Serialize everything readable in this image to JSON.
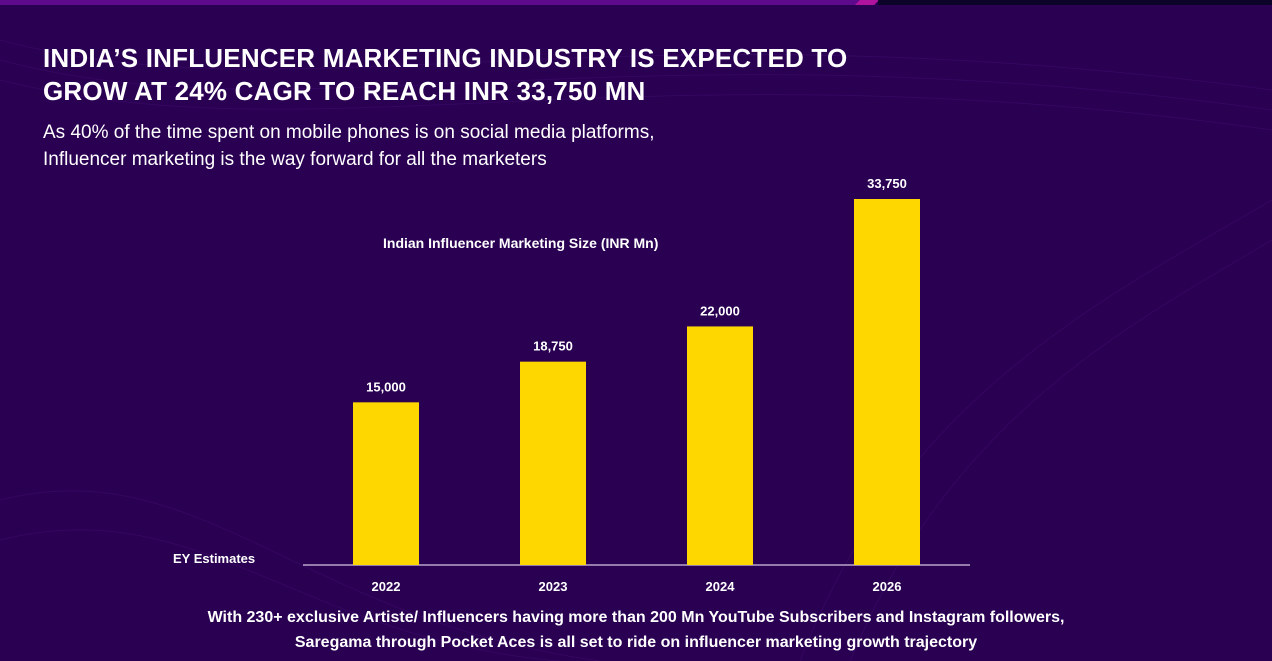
{
  "header": {
    "title_line1": "INDIA’S INFLUENCER MARKETING INDUSTRY IS EXPECTED TO",
    "title_line2": "GROW AT 24% CAGR TO REACH INR 33,750 MN",
    "subtitle_line1": "As 40% of the time spent on mobile phones is on social media platforms,",
    "subtitle_line2": "Influencer marketing is the way forward for all the marketers"
  },
  "source": "EY Estimates",
  "footer": {
    "line1": "With 230+ exclusive Artiste/ Influencers having more than 200 Mn YouTube Subscribers and Instagram followers,",
    "line2": "Saregama through Pocket Aces is all set to ride on influencer marketing growth trajectory"
  },
  "colors": {
    "background": "#2a0052",
    "bar": "#ffd700",
    "axis": "#b9a6c9"
  },
  "chart_data": {
    "type": "bar",
    "title": "Indian Influencer Marketing Size (INR Mn)",
    "categories": [
      "2022",
      "2023",
      "2024",
      "2026"
    ],
    "values": [
      15000,
      18750,
      22000,
      33750
    ],
    "value_labels": [
      "15,000",
      "18,750",
      "22,000",
      "33,750"
    ],
    "xlabel": "",
    "ylabel": "",
    "ylim": [
      0,
      33750
    ],
    "grid": false
  }
}
